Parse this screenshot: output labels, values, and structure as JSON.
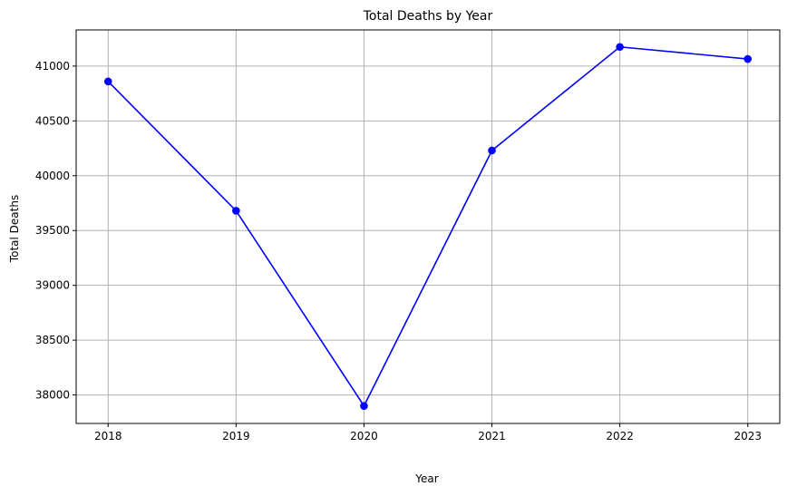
{
  "chart_data": {
    "type": "line",
    "title": "Total Deaths by Year",
    "xlabel": "Year",
    "ylabel": "Total Deaths",
    "x": [
      2018,
      2019,
      2020,
      2021,
      2022,
      2023
    ],
    "x_tick_labels": [
      "2018",
      "2019",
      "2020",
      "2021",
      "2022",
      "2023"
    ],
    "y_ticks": [
      38000,
      38500,
      39000,
      39500,
      40000,
      40500,
      41000
    ],
    "y_tick_labels": [
      "38000",
      "38500",
      "39000",
      "39500",
      "40000",
      "40500",
      "41000"
    ],
    "series": [
      {
        "values": [
          40860,
          39680,
          37900,
          40230,
          41175,
          41065
        ],
        "color": "#0000ff",
        "marker": "circle"
      }
    ],
    "xlim": [
      2017.75,
      2023.25
    ],
    "ylim": [
      37740,
      41330
    ],
    "grid": true,
    "grid_color": "#b0b0b0",
    "legend": "none"
  }
}
